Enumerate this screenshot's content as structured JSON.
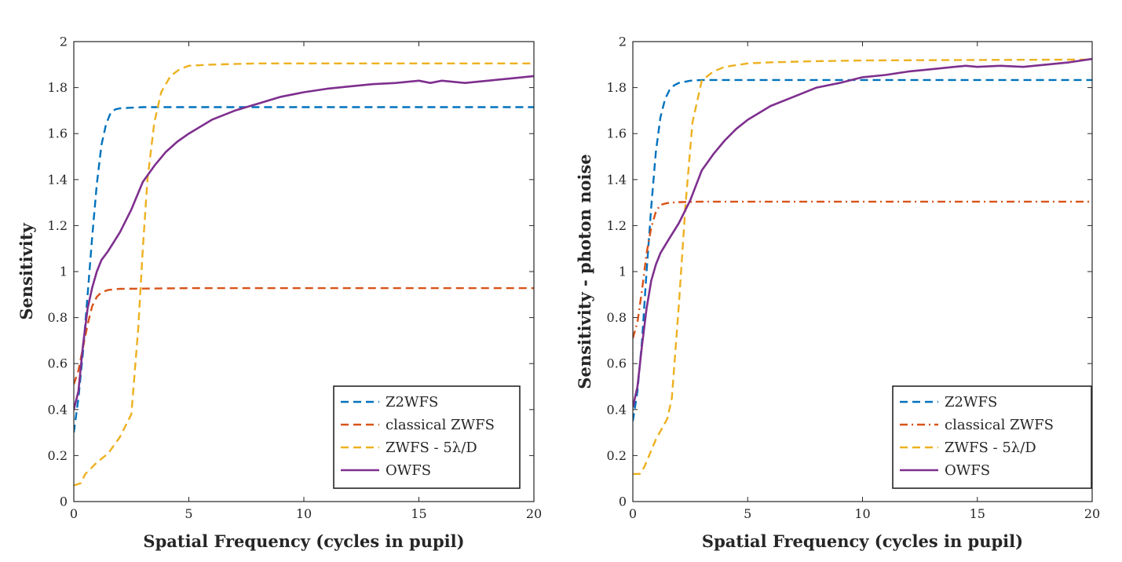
{
  "chart_data": [
    {
      "type": "line",
      "xlabel": "Spatial Frequency (cycles in pupil)",
      "ylabel": "Sensitivity",
      "xlim": [
        0,
        20
      ],
      "ylim": [
        0,
        2
      ],
      "xticks": [
        0,
        5,
        10,
        15,
        20
      ],
      "yticks": [
        0,
        0.2,
        0.4,
        0.6,
        0.8,
        1,
        1.2,
        1.4,
        1.6,
        1.8,
        2
      ],
      "xtick_labels": [
        "0",
        "5",
        "10",
        "15",
        "20"
      ],
      "ytick_labels": [
        "0",
        "0.2",
        "0.4",
        "0.6",
        "0.8",
        "1",
        "1.2",
        "1.4",
        "1.6",
        "1.8",
        "2"
      ],
      "grid": false,
      "legend_position": "bottom-right",
      "series": [
        {
          "name": "Z2WFS",
          "color": "#0072BD",
          "style": "dashed",
          "x": [
            0,
            0.2,
            0.4,
            0.6,
            0.8,
            1.0,
            1.2,
            1.4,
            1.6,
            1.8,
            2.0,
            3,
            5,
            10,
            15,
            20
          ],
          "y": [
            0.3,
            0.45,
            0.65,
            0.9,
            1.15,
            1.38,
            1.55,
            1.64,
            1.69,
            1.705,
            1.71,
            1.715,
            1.715,
            1.715,
            1.715,
            1.715
          ]
        },
        {
          "name": "classical ZWFS",
          "color": "#D95319",
          "style": "dashed",
          "x": [
            0,
            0.2,
            0.4,
            0.6,
            0.8,
            1.0,
            1.2,
            1.5,
            2,
            5,
            10,
            15,
            20
          ],
          "y": [
            0.51,
            0.57,
            0.67,
            0.77,
            0.85,
            0.89,
            0.91,
            0.92,
            0.925,
            0.928,
            0.928,
            0.928,
            0.928
          ]
        },
        {
          "name": "ZWFS - 5λ/D",
          "color": "#EDB120",
          "style": "dashed",
          "x": [
            0,
            0.3,
            0.5,
            1.0,
            1.5,
            2.0,
            2.5,
            2.8,
            3.0,
            3.2,
            3.5,
            3.8,
            4.2,
            4.6,
            5,
            6,
            8,
            10,
            15,
            20
          ],
          "y": [
            0.07,
            0.08,
            0.12,
            0.17,
            0.21,
            0.28,
            0.38,
            0.75,
            1.1,
            1.4,
            1.65,
            1.78,
            1.85,
            1.88,
            1.895,
            1.9,
            1.905,
            1.905,
            1.905,
            1.905
          ]
        },
        {
          "name": "OWFS",
          "color": "#7E2F8E",
          "style": "solid",
          "x": [
            0,
            0.2,
            0.4,
            0.6,
            0.8,
            1.0,
            1.2,
            1.5,
            2.0,
            2.5,
            3.0,
            3.5,
            4.0,
            4.5,
            5,
            6,
            7,
            8,
            9,
            10,
            11,
            12,
            13,
            14,
            15,
            15.5,
            16,
            17,
            18,
            19,
            20
          ],
          "y": [
            0.4,
            0.48,
            0.68,
            0.84,
            0.93,
            1.0,
            1.05,
            1.09,
            1.17,
            1.27,
            1.39,
            1.46,
            1.52,
            1.565,
            1.6,
            1.66,
            1.7,
            1.73,
            1.76,
            1.78,
            1.795,
            1.805,
            1.815,
            1.82,
            1.83,
            1.82,
            1.83,
            1.82,
            1.83,
            1.84,
            1.85
          ]
        }
      ]
    },
    {
      "type": "line",
      "xlabel": "Spatial Frequency (cycles in pupil)",
      "ylabel": "Sensitivity - photon noise",
      "xlim": [
        0,
        20
      ],
      "ylim": [
        0,
        2
      ],
      "xticks": [
        0,
        5,
        10,
        15,
        20
      ],
      "yticks": [
        0,
        0.2,
        0.4,
        0.6,
        0.8,
        1,
        1.2,
        1.4,
        1.6,
        1.8,
        2
      ],
      "xtick_labels": [
        "0",
        "5",
        "10",
        "15",
        "20"
      ],
      "ytick_labels": [
        "0",
        "0.2",
        "0.4",
        "0.6",
        "0.8",
        "1",
        "1.2",
        "1.4",
        "1.6",
        "1.8",
        "2"
      ],
      "grid": false,
      "legend_position": "bottom-right",
      "series": [
        {
          "name": "Z2WFS",
          "color": "#0072BD",
          "style": "dashed",
          "x": [
            0,
            0.2,
            0.4,
            0.6,
            0.8,
            1.0,
            1.2,
            1.4,
            1.6,
            1.8,
            2.0,
            2.5,
            3,
            5,
            10,
            15,
            20
          ],
          "y": [
            0.35,
            0.48,
            0.7,
            1.0,
            1.28,
            1.52,
            1.67,
            1.75,
            1.79,
            1.81,
            1.82,
            1.83,
            1.833,
            1.833,
            1.833,
            1.833,
            1.833
          ]
        },
        {
          "name": "classical ZWFS",
          "color": "#D95319",
          "style": "dashdot",
          "x": [
            0,
            0.2,
            0.4,
            0.6,
            0.8,
            1.0,
            1.2,
            1.5,
            2,
            3,
            5,
            10,
            15,
            20
          ],
          "y": [
            0.71,
            0.78,
            0.92,
            1.08,
            1.19,
            1.26,
            1.29,
            1.298,
            1.302,
            1.304,
            1.304,
            1.304,
            1.304,
            1.304
          ]
        },
        {
          "name": "ZWFS - 5λ/D",
          "color": "#EDB120",
          "style": "dashed",
          "x": [
            0,
            0.3,
            0.5,
            1.0,
            1.5,
            1.7,
            2.0,
            2.3,
            2.6,
            3.0,
            3.5,
            4,
            5,
            6,
            8,
            10,
            15,
            20
          ],
          "y": [
            0.12,
            0.12,
            0.15,
            0.27,
            0.36,
            0.45,
            0.85,
            1.3,
            1.65,
            1.83,
            1.87,
            1.89,
            1.905,
            1.91,
            1.915,
            1.918,
            1.92,
            1.922
          ]
        },
        {
          "name": "OWFS",
          "color": "#7E2F8E",
          "style": "solid",
          "x": [
            0,
            0.2,
            0.4,
            0.6,
            0.8,
            1.0,
            1.2,
            1.5,
            2.0,
            2.5,
            3.0,
            3.5,
            4.0,
            4.5,
            5,
            6,
            7,
            8,
            9,
            10,
            11,
            12,
            13,
            14,
            14.5,
            15,
            16,
            17,
            18,
            19,
            20
          ],
          "y": [
            0.41,
            0.5,
            0.68,
            0.84,
            0.96,
            1.03,
            1.08,
            1.13,
            1.21,
            1.31,
            1.44,
            1.51,
            1.57,
            1.62,
            1.66,
            1.72,
            1.76,
            1.8,
            1.82,
            1.845,
            1.855,
            1.87,
            1.88,
            1.89,
            1.895,
            1.89,
            1.895,
            1.89,
            1.9,
            1.91,
            1.925
          ]
        }
      ]
    }
  ]
}
